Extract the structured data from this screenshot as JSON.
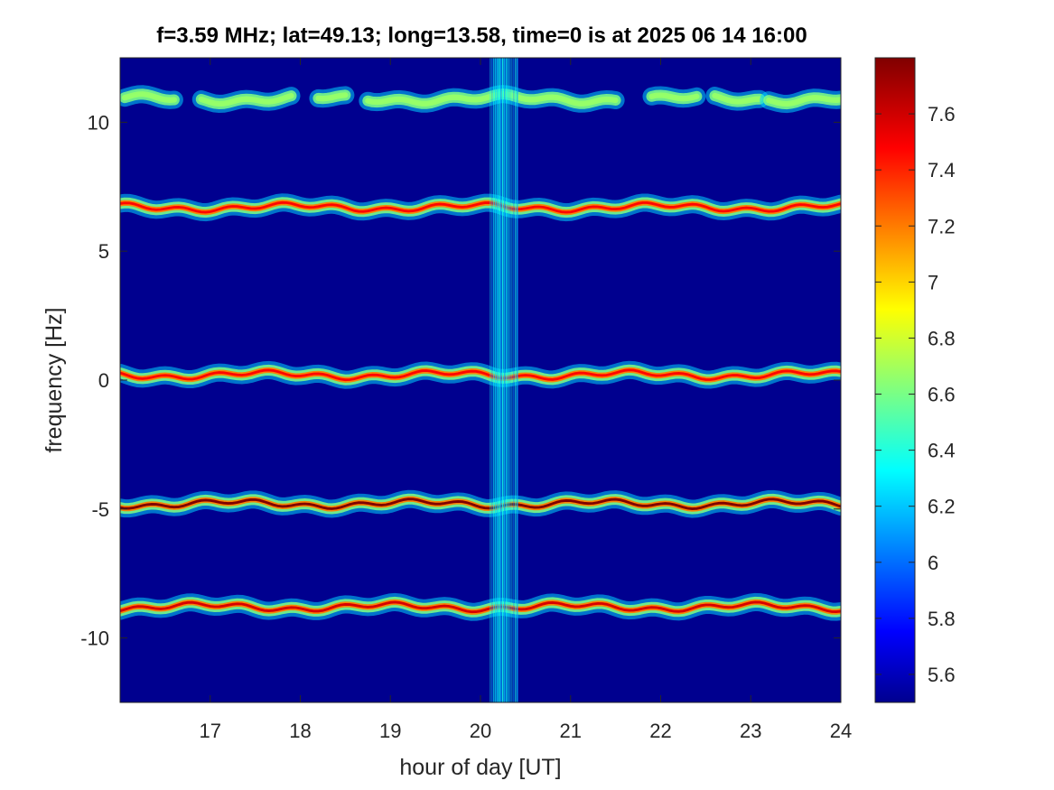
{
  "chart_data": {
    "type": "heatmap",
    "title": "f=3.59 MHz;  lat=49.13; long=13.58, time=0 is at 2025 06 14 16:00",
    "xlabel": "hour of day [UT]",
    "ylabel": "frequency [Hz]",
    "xlim": [
      16,
      24
    ],
    "ylim": [
      -12.5,
      12.5
    ],
    "x_ticks": [
      17,
      18,
      19,
      20,
      21,
      22,
      23,
      24
    ],
    "x_tick_labels": [
      "17",
      "18",
      "19",
      "20",
      "21",
      "22",
      "23",
      "24"
    ],
    "y_ticks": [
      10,
      5,
      0,
      -5,
      -10
    ],
    "y_tick_labels": [
      "10",
      "5",
      "0",
      "-5",
      "-10"
    ],
    "colorbar": {
      "range": [
        5.5,
        7.8
      ],
      "ticks": [
        7.6,
        7.4,
        7.2,
        7.0,
        6.8,
        6.6,
        6.4,
        6.2,
        6.0,
        5.8,
        5.6
      ],
      "tick_labels": [
        "7.6",
        "7.4",
        "7.2",
        "7",
        "6.8",
        "6.6",
        "6.4",
        "6.2",
        "6",
        "5.8",
        "5.6"
      ],
      "colormap": "jet"
    },
    "background_level": 5.6,
    "bands": [
      {
        "center_hz": 10.9,
        "peak_level": 6.7,
        "segments": [
          [
            16.05,
            16.6
          ],
          [
            16.9,
            17.9
          ],
          [
            18.2,
            18.5
          ],
          [
            18.75,
            21.5
          ],
          [
            21.9,
            22.4
          ],
          [
            22.6,
            23.1
          ],
          [
            23.2,
            24.0
          ]
        ]
      },
      {
        "center_hz": 6.7,
        "peak_level": 7.5,
        "segments": [
          [
            16.0,
            24.0
          ]
        ]
      },
      {
        "center_hz": 0.2,
        "peak_level": 7.5,
        "segments": [
          [
            16.0,
            24.0
          ]
        ]
      },
      {
        "center_hz": -4.8,
        "peak_level": 7.8,
        "segments": [
          [
            16.0,
            24.0
          ]
        ]
      },
      {
        "center_hz": -8.8,
        "peak_level": 7.6,
        "segments": [
          [
            16.0,
            24.0
          ]
        ]
      }
    ],
    "broadband_interference": {
      "x_start": 20.1,
      "x_end": 20.42,
      "level": 6.4
    }
  }
}
